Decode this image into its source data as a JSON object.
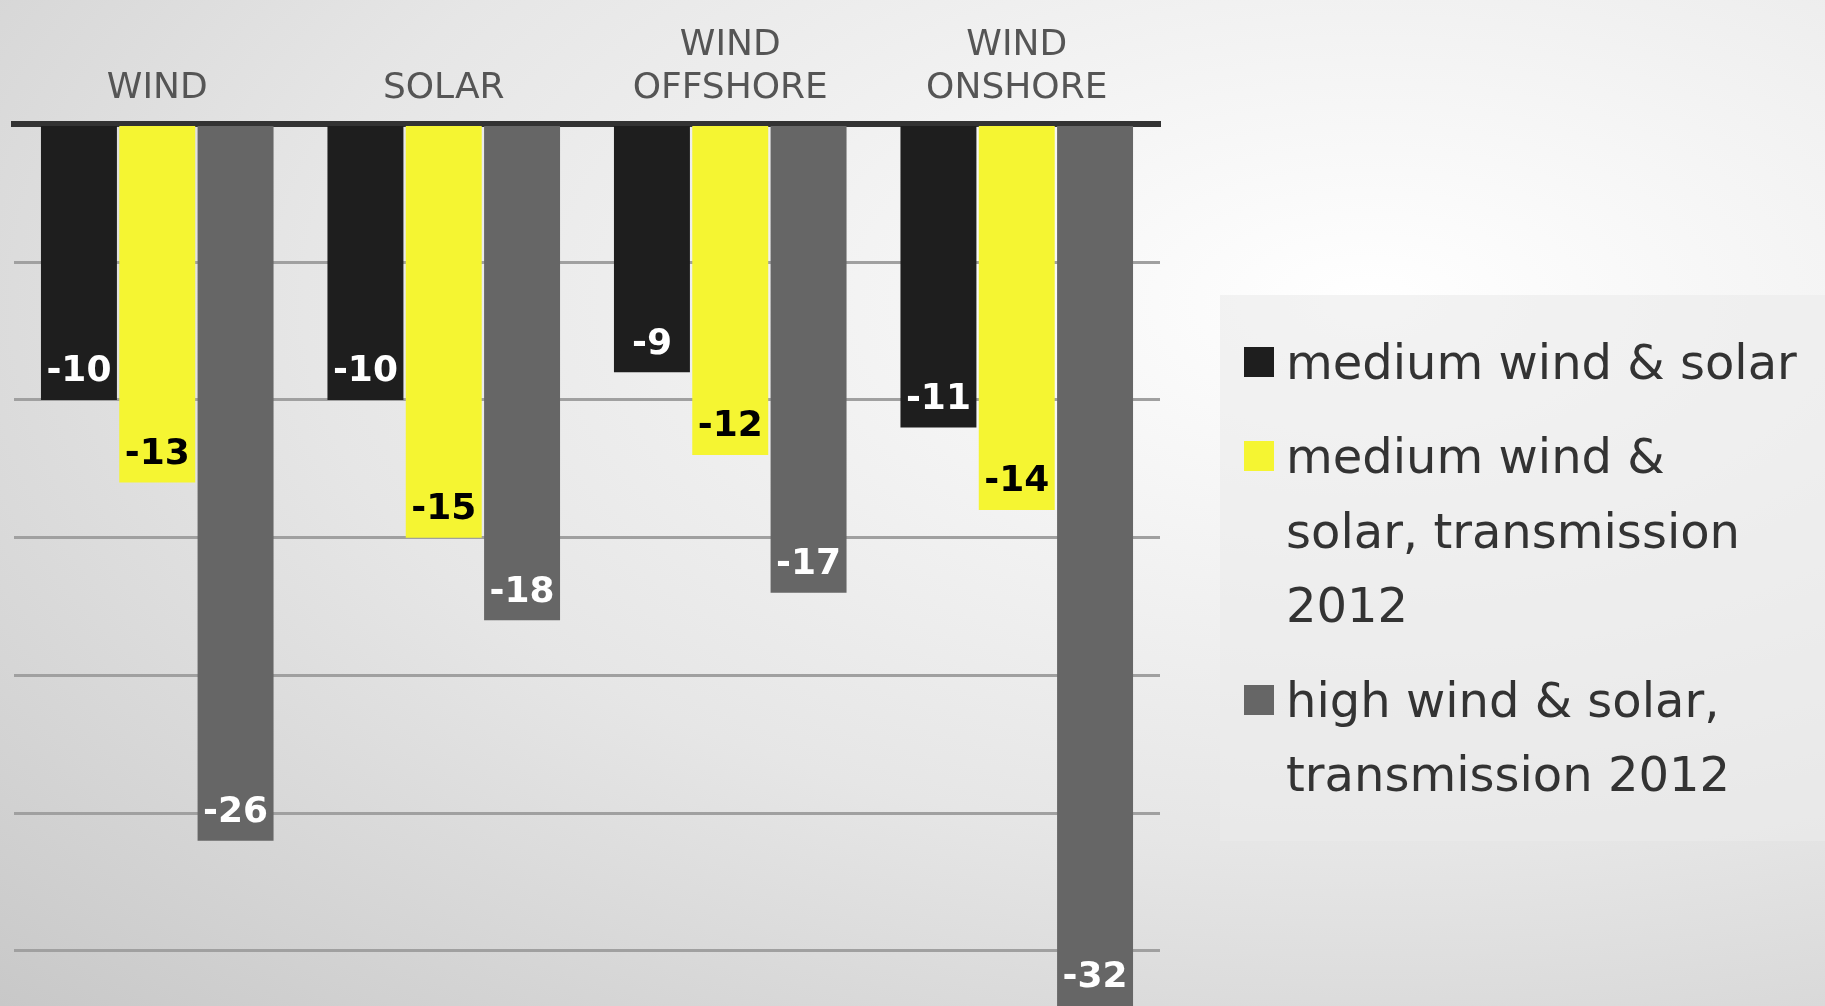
{
  "chart_data": {
    "type": "bar",
    "categories": [
      "WIND",
      "SOLAR",
      "WIND OFFSHORE",
      "WIND ONSHORE"
    ],
    "series": [
      {
        "name": "medium wind & solar",
        "color": "#1e1e1e",
        "values": [
          -10,
          -10,
          -9,
          -11
        ]
      },
      {
        "name": "medium wind & solar, transmission 2012",
        "color": "#f5f532",
        "values": [
          -13,
          -15,
          -12,
          -14
        ]
      },
      {
        "name": "high wind & solar, transmission 2012",
        "color": "#666666",
        "values": [
          -26,
          -18,
          -17,
          -32
        ]
      }
    ],
    "ylim": [
      -32,
      0
    ],
    "yticks": [
      {
        "value": 0,
        "label": null
      },
      {
        "value": -5,
        "label": null
      },
      {
        "value": -10,
        "label": null
      },
      {
        "value": -15,
        "label": null
      },
      {
        "value": -20,
        "label": null
      },
      {
        "value": -25,
        "label": null
      },
      {
        "value": -30,
        "label": null
      }
    ],
    "grid": "y",
    "legend": "right",
    "tick_labels": "x",
    "data_labels": true
  }
}
